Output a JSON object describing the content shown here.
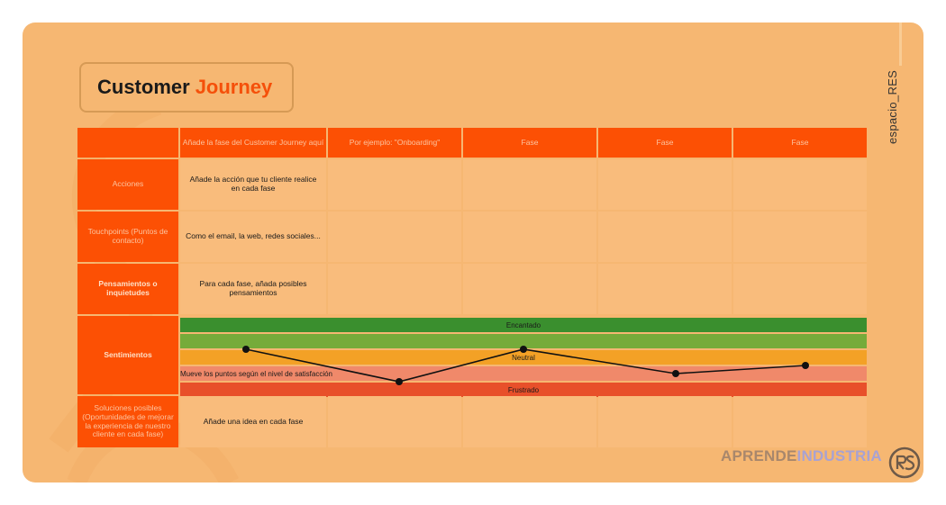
{
  "header": {
    "title_part1": "Customer",
    "title_part2": "Journey",
    "side_brand": "espacio_RES"
  },
  "table": {
    "phases": [
      "Añade la fase del Customer Journey aquí",
      "Por ejemplo: \"Onboarding\"",
      "Fase",
      "Fase",
      "Fase"
    ],
    "rows": [
      {
        "label": "Acciones",
        "text": "Añade la acción que tu cliente realice en cada fase"
      },
      {
        "label": "Touchpoints (Puntos de contacto)",
        "text": "Como el email, la web, redes sociales..."
      },
      {
        "label": "Pensamientos o inquietudes",
        "text": "Para cada fase, añada posibles pensamientos"
      },
      {
        "label": "Sentimientos",
        "text": ""
      },
      {
        "label": "Soluciones posibles (Oportunidades de mejorar la experiencia de nuestro cliente en cada fase)",
        "text": "Añade una idea en cada fase"
      }
    ]
  },
  "sentiment": {
    "bands": [
      {
        "label": "Encantado",
        "color": "#3a8f2e"
      },
      {
        "label": "",
        "color": "#76ab3a"
      },
      {
        "label": "Neutral",
        "color": "#f3a126"
      },
      {
        "label": "Mueve los puntos según el nivel de satisfacción",
        "color": "#f0896a"
      },
      {
        "label": "Frustrado",
        "color": "#e8502a"
      }
    ],
    "levels": [
      1.5,
      3.5,
      1.5,
      3.0,
      2.5
    ],
    "line_color": "#111111"
  },
  "footer": {
    "brand_part1": "APRENDE",
    "brand_part2": "INDUSTRIA",
    "logo_icon": "rs-monogram-icon"
  }
}
